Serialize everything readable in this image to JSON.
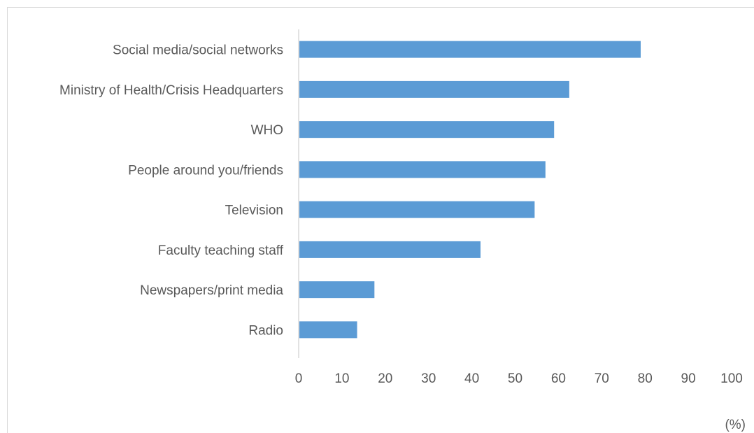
{
  "chart_data": {
    "type": "bar",
    "orientation": "horizontal",
    "categories": [
      "Social media/social networks",
      "Ministry of Health/Crisis Headquarters",
      "WHO",
      "People around you/friends",
      "Television",
      "Faculty teaching staff",
      "Newspapers/print media",
      "Radio"
    ],
    "values": [
      79,
      62.5,
      59,
      57,
      54.5,
      42,
      17.5,
      13.5
    ],
    "xlim": [
      0,
      100
    ],
    "xticks": [
      0,
      10,
      20,
      30,
      40,
      50,
      60,
      70,
      80,
      90,
      100
    ],
    "tick_labels": [
      "0",
      "10",
      "20",
      "30",
      "40",
      "50",
      "60",
      "70",
      "80",
      "90",
      "100"
    ],
    "unit_label": "(%)",
    "grid": false,
    "bar_color": "#5B9BD5",
    "axis_color": "#d9d9d9",
    "text_color": "#595959"
  }
}
